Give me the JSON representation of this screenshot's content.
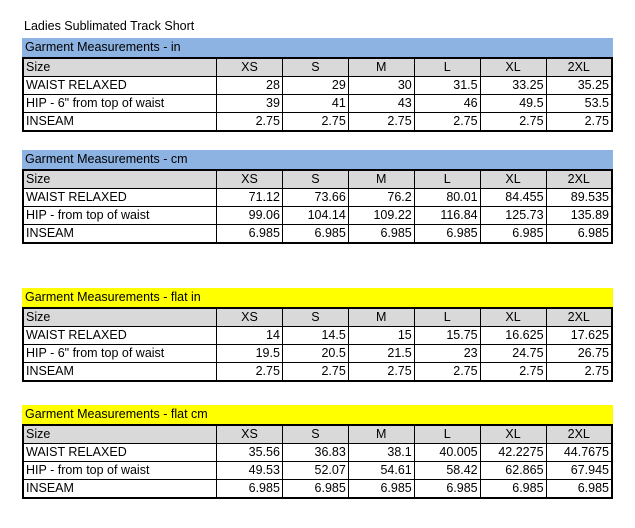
{
  "title": "Ladies Sublimated Track Short",
  "sections": [
    {
      "heading": "Garment Measurements - in",
      "color": "#8db3e2",
      "header": [
        "Size",
        "XS",
        "S",
        "M",
        "L",
        "XL",
        "2XL"
      ],
      "rows": [
        [
          "WAIST RELAXED",
          "28",
          "29",
          "30",
          "31.5",
          "33.25",
          "35.25"
        ],
        [
          "HIP - 6\" from top of waist",
          "39",
          "41",
          "43",
          "46",
          "49.5",
          "53.5"
        ],
        [
          "INSEAM",
          "2.75",
          "2.75",
          "2.75",
          "2.75",
          "2.75",
          "2.75"
        ]
      ]
    },
    {
      "heading": "Garment Measurements - cm",
      "color": "#8db3e2",
      "header": [
        "Size",
        "XS",
        "S",
        "M",
        "L",
        "XL",
        "2XL"
      ],
      "rows": [
        [
          "WAIST RELAXED",
          "71.12",
          "73.66",
          "76.2",
          "80.01",
          "84.455",
          "89.535"
        ],
        [
          "HIP - from top of waist",
          "99.06",
          "104.14",
          "109.22",
          "116.84",
          "125.73",
          "135.89"
        ],
        [
          "INSEAM",
          "6.985",
          "6.985",
          "6.985",
          "6.985",
          "6.985",
          "6.985"
        ]
      ]
    },
    {
      "heading": "Garment Measurements - flat in",
      "color": "#ffff00",
      "header": [
        "Size",
        "XS",
        "S",
        "M",
        "L",
        "XL",
        "2XL"
      ],
      "rows": [
        [
          "WAIST RELAXED",
          "14",
          "14.5",
          "15",
          "15.75",
          "16.625",
          "17.625"
        ],
        [
          "HIP - 6\" from top of waist",
          "19.5",
          "20.5",
          "21.5",
          "23",
          "24.75",
          "26.75"
        ],
        [
          "INSEAM",
          "2.75",
          "2.75",
          "2.75",
          "2.75",
          "2.75",
          "2.75"
        ]
      ]
    },
    {
      "heading": "Garment Measurements - flat cm",
      "color": "#ffff00",
      "header": [
        "Size",
        "XS",
        "S",
        "M",
        "L",
        "XL",
        "2XL"
      ],
      "rows": [
        [
          "WAIST RELAXED",
          "35.56",
          "36.83",
          "38.1",
          "40.005",
          "42.2275",
          "44.7675"
        ],
        [
          "HIP - from top of waist",
          "49.53",
          "52.07",
          "54.61",
          "58.42",
          "62.865",
          "67.945"
        ],
        [
          "INSEAM",
          "6.985",
          "6.985",
          "6.985",
          "6.985",
          "6.985",
          "6.985"
        ]
      ]
    }
  ]
}
